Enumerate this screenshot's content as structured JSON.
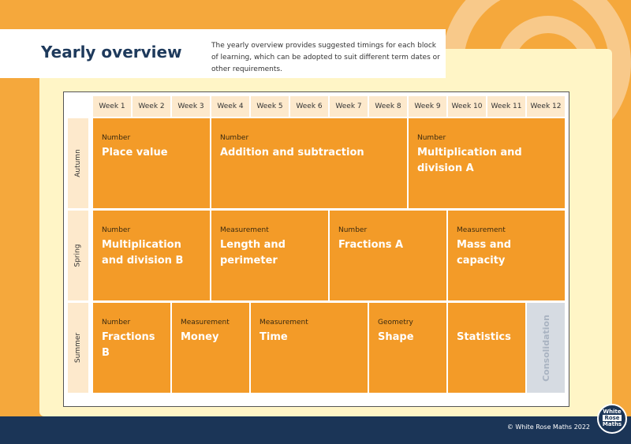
{
  "header": {
    "title": "Yearly overview",
    "description": "The yearly overview provides suggested timings for each block of learning, which can be adopted to suit different term dates or other requirements."
  },
  "weeks": [
    "Week 1",
    "Week 2",
    "Week 3",
    "Week 4",
    "Week 5",
    "Week 6",
    "Week 7",
    "Week 8",
    "Week 9",
    "Week 10",
    "Week 11",
    "Week 12"
  ],
  "terms": [
    "Autumn",
    "Spring",
    "Summer"
  ],
  "blocks": [
    {
      "term": 0,
      "start": 1,
      "span": 3,
      "category": "Number",
      "name": "Place value"
    },
    {
      "term": 0,
      "start": 4,
      "span": 5,
      "category": "Number",
      "name": "Addition and subtraction"
    },
    {
      "term": 0,
      "start": 9,
      "span": 4,
      "category": "Number",
      "name": "Multiplication and division A"
    },
    {
      "term": 1,
      "start": 1,
      "span": 3,
      "category": "Number",
      "name": "Multiplication and division B"
    },
    {
      "term": 1,
      "start": 4,
      "span": 3,
      "category": "Measurement",
      "name": "Length and perimeter"
    },
    {
      "term": 1,
      "start": 7,
      "span": 3,
      "category": "Number",
      "name": "Fractions A"
    },
    {
      "term": 1,
      "start": 10,
      "span": 3,
      "category": "Measurement",
      "name": "Mass and capacity"
    },
    {
      "term": 2,
      "start": 1,
      "span": 2,
      "category": "Number",
      "name": "Fractions B"
    },
    {
      "term": 2,
      "start": 3,
      "span": 2,
      "category": "Measurement",
      "name": "Money"
    },
    {
      "term": 2,
      "start": 5,
      "span": 3,
      "category": "Measurement",
      "name": "Time"
    },
    {
      "term": 2,
      "start": 8,
      "span": 2,
      "category": "Geometry",
      "name": "Shape"
    },
    {
      "term": 2,
      "start": 10,
      "span": 2,
      "category": "",
      "name": "Statistics"
    }
  ],
  "consolidation": {
    "term": 2,
    "start": 12,
    "span": 1,
    "label": "Consolidation"
  },
  "footer": {
    "copyright": "© White Rose Maths 2022",
    "logo": [
      "White",
      "Rose",
      "Maths"
    ]
  },
  "colors": {
    "block": "#f39b28",
    "navy": "#1b3557",
    "background": "#f5a83c",
    "panel": "#fff5c6"
  }
}
